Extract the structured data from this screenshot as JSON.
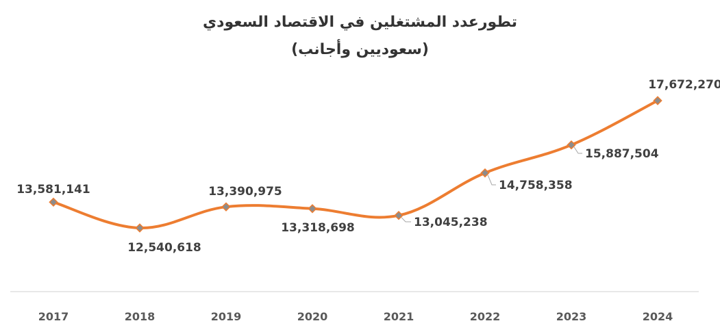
{
  "chart_data": {
    "type": "line",
    "title": "تطورعدد المشتغلين في الاقتصاد السعودي",
    "subtitle": "(سعوديين وأجانب)",
    "xlabel": "",
    "ylabel": "",
    "categories": [
      "2017",
      "2018",
      "2019",
      "2020",
      "2021",
      "2022",
      "2023",
      "2024"
    ],
    "series": [
      {
        "values": [
          13581141,
          12540618,
          13390975,
          13318698,
          13045238,
          14758358,
          15887504,
          17672270
        ],
        "labels": [
          "13,581,141",
          "12,540,618",
          "13,390,975",
          "13,318,698",
          "13,045,238",
          "14,758,358",
          "15,887,504",
          "17,672,270"
        ]
      }
    ],
    "grid": false,
    "smooth": true,
    "colors": {
      "line": "#ED7D31",
      "marker": "#8C8C8C",
      "axis": "#D9D9D9"
    }
  }
}
